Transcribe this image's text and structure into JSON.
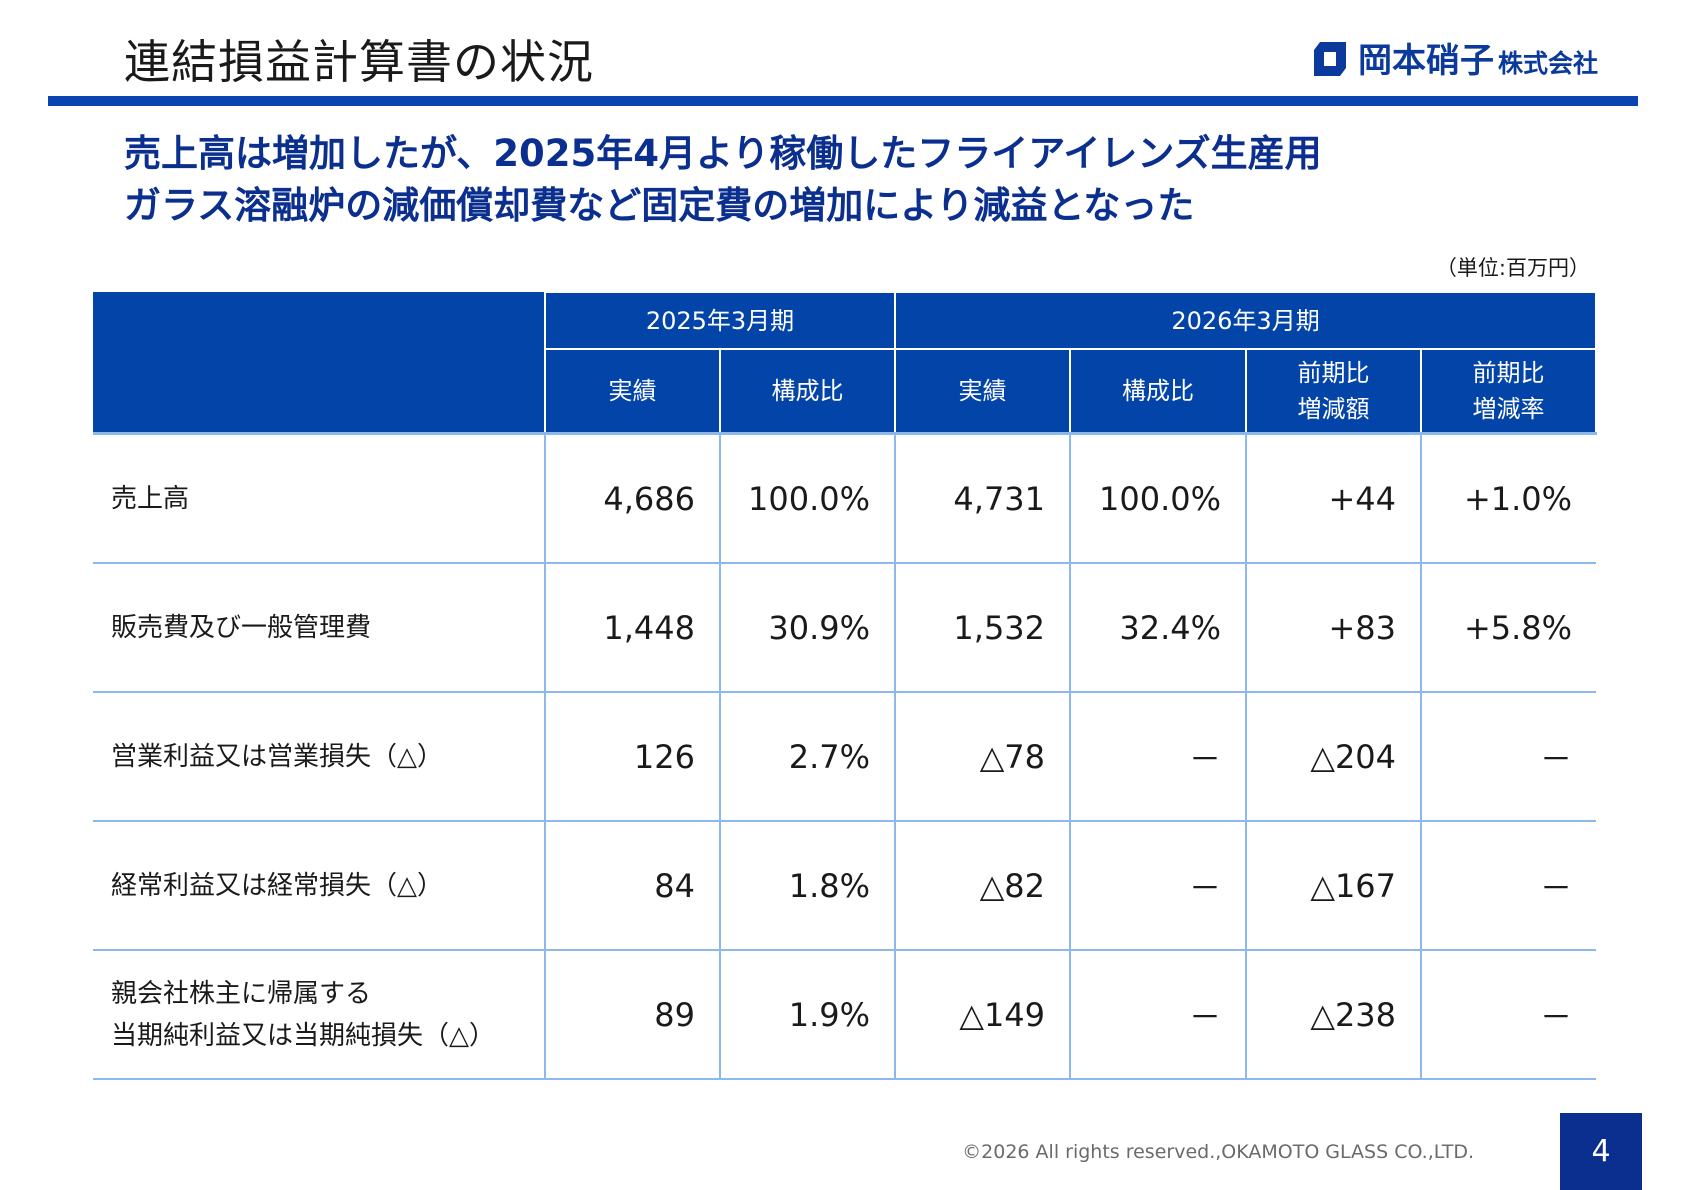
{
  "header": {
    "title": "連結損益計算書の状況",
    "company": {
      "name": "岡本硝子",
      "suffix": "株式会社"
    }
  },
  "headline": {
    "line1": "売上高は増加したが、2025年4月より稼働したフライアイレンズ生産用",
    "line2": "ガラス溶融炉の減価償却費など固定費の増加により減益となった"
  },
  "unit_note": "（単位:百万円）",
  "table": {
    "period_headers": [
      "2025年3月期",
      "2026年3月期"
    ],
    "sub_headers": {
      "result": "実績",
      "ratio": "構成比",
      "change_amount_1": "前期比",
      "change_amount_2": "増減額",
      "change_rate_1": "前期比",
      "change_rate_2": "増減率"
    },
    "rows": [
      {
        "label": "売上高",
        "label2": "",
        "v2025": "4,686",
        "r2025": "100.0%",
        "v2026": "4,731",
        "r2026": "100.0%",
        "diff": "+44",
        "rate": "+1.0%"
      },
      {
        "label": "販売費及び一般管理費",
        "label2": "",
        "v2025": "1,448",
        "r2025": "30.9%",
        "v2026": "1,532",
        "r2026": "32.4%",
        "diff": "+83",
        "rate": "+5.8%"
      },
      {
        "label": "営業利益又は営業損失（△）",
        "label2": "",
        "v2025": "126",
        "r2025": "2.7%",
        "v2026": "△78",
        "r2026": "－",
        "diff": "△204",
        "rate": "－"
      },
      {
        "label": "経常利益又は経常損失（△）",
        "label2": "",
        "v2025": "84",
        "r2025": "1.8%",
        "v2026": "△82",
        "r2026": "－",
        "diff": "△167",
        "rate": "－"
      },
      {
        "label": "親会社株主に帰属する",
        "label2": "当期純利益又は当期純損失（△）",
        "v2025": "89",
        "r2025": "1.9%",
        "v2026": "△149",
        "r2026": "－",
        "diff": "△238",
        "rate": "－"
      }
    ]
  },
  "footer": {
    "copyright": "©2026  All rights reserved.,OKAMOTO GLASS CO.,LTD.",
    "page_number": "4"
  },
  "colors": {
    "brand_blue": "#0a44b0",
    "table_header": "#0344a8",
    "grid_line": "#8db8ec",
    "headline_text": "#0a2f8f"
  }
}
